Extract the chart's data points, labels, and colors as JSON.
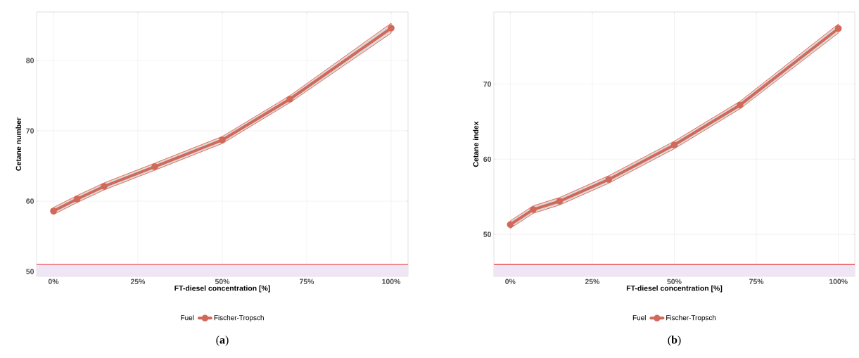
{
  "chart_data": [
    {
      "type": "line",
      "xlabel": "FT-diesel concentration [%]",
      "ylabel": "Cetane number",
      "legend_title": "Fuel",
      "legend": "bottom",
      "grid": true,
      "marker": "circle",
      "line_style": "solid",
      "x": [
        0,
        7,
        15,
        30,
        50,
        70,
        100
      ],
      "series": [
        {
          "name": "Fischer-Tropsch",
          "color": "#d0695a",
          "values": [
            58.6,
            60.3,
            62.1,
            64.9,
            68.7,
            74.5,
            84.6
          ],
          "lower": [
            58.1,
            59.8,
            61.6,
            64.4,
            68.2,
            74.0,
            83.9
          ],
          "upper": [
            59.1,
            60.8,
            62.6,
            65.4,
            69.2,
            75.0,
            85.3
          ]
        }
      ],
      "xlim": [
        -5,
        105
      ],
      "ylim": [
        49.3,
        86.9
      ],
      "xticks": [
        {
          "value": 0,
          "label": "0%"
        },
        {
          "value": 25,
          "label": "25%"
        },
        {
          "value": 50,
          "label": "50%"
        },
        {
          "value": 75,
          "label": "75%"
        },
        {
          "value": 100,
          "label": "100%"
        }
      ],
      "yticks": [
        50,
        60,
        70,
        80
      ],
      "ref_lines": [
        {
          "axis": "y",
          "value": 51.0,
          "color": "#e8262a"
        }
      ],
      "bands": [
        {
          "axis": "y",
          "from": 49.3,
          "to": 51.0,
          "color": "#efe6f5"
        }
      ],
      "annotations": [
        "(**a**)"
      ]
    },
    {
      "type": "line",
      "xlabel": "FT-diesel concentration [%]",
      "ylabel": "Cetane index",
      "legend_title": "Fuel",
      "legend": "bottom",
      "grid": true,
      "marker": "circle",
      "line_style": "solid",
      "x": [
        0,
        7,
        15,
        30,
        50,
        70,
        100
      ],
      "series": [
        {
          "name": "Fischer-Tropsch",
          "color": "#d0695a",
          "values": [
            51.3,
            53.3,
            54.4,
            57.3,
            61.9,
            67.2,
            77.4
          ],
          "lower": [
            50.8,
            52.8,
            53.9,
            56.8,
            61.4,
            66.7,
            76.8
          ],
          "upper": [
            51.8,
            53.8,
            54.9,
            57.8,
            62.4,
            67.7,
            78.0
          ]
        }
      ],
      "xlim": [
        -5,
        105
      ],
      "ylim": [
        44.4,
        79.6
      ],
      "xticks": [
        {
          "value": 0,
          "label": "0%"
        },
        {
          "value": 25,
          "label": "25%"
        },
        {
          "value": 50,
          "label": "50%"
        },
        {
          "value": 75,
          "label": "75%"
        },
        {
          "value": 100,
          "label": "100%"
        }
      ],
      "yticks": [
        50,
        60,
        70
      ],
      "ref_lines": [
        {
          "axis": "y",
          "value": 46.0,
          "color": "#e8262a"
        }
      ],
      "bands": [
        {
          "axis": "y",
          "from": 44.4,
          "to": 46.0,
          "color": "#efe6f5"
        }
      ],
      "annotations": [
        "(**b**)"
      ]
    }
  ]
}
